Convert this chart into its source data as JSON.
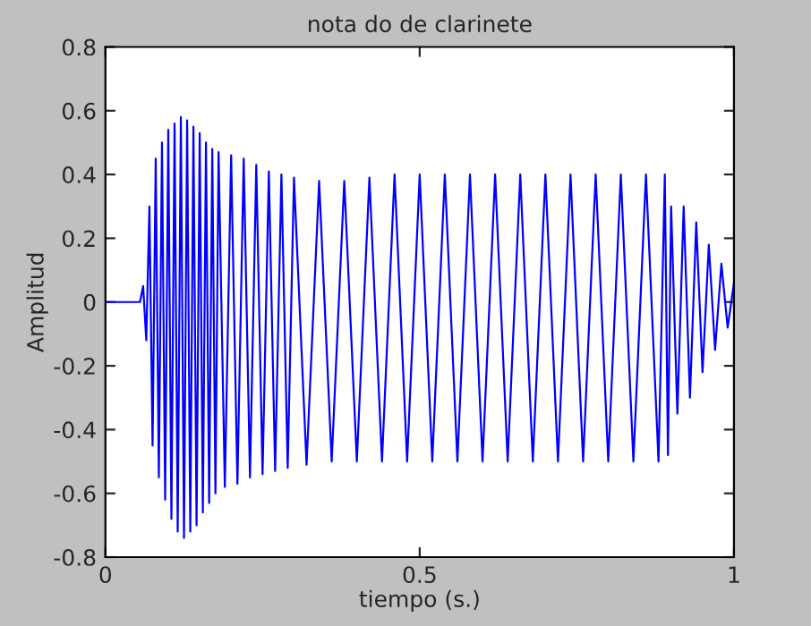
{
  "chart_data": {
    "type": "line",
    "title": "nota do de clarinete",
    "xlabel": "tiempo (s.)",
    "ylabel": "Amplitud",
    "xlim": [
      0,
      1
    ],
    "xticks": [
      0,
      0.5,
      1
    ],
    "ylim": [
      -0.8,
      0.8
    ],
    "yticks": [
      -0.8,
      -0.6,
      -0.4,
      -0.2,
      0,
      0.2,
      0.4,
      0.6,
      0.8
    ],
    "grid": false,
    "marker": "none",
    "line_style": "solid",
    "series": [
      {
        "color": "#0000ff",
        "x": [
          0,
          0.055,
          0.06,
          0.065,
          0.07,
          0.075,
          0.08,
          0.085,
          0.09,
          0.095,
          0.1,
          0.105,
          0.11,
          0.115,
          0.12,
          0.125,
          0.13,
          0.135,
          0.14,
          0.145,
          0.15,
          0.155,
          0.16,
          0.165,
          0.17,
          0.175,
          0.18,
          0.19,
          0.2,
          0.21,
          0.22,
          0.23,
          0.24,
          0.25,
          0.26,
          0.27,
          0.28,
          0.29,
          0.3,
          0.32,
          0.34,
          0.36,
          0.38,
          0.4,
          0.42,
          0.44,
          0.46,
          0.48,
          0.5,
          0.52,
          0.54,
          0.56,
          0.58,
          0.6,
          0.62,
          0.64,
          0.66,
          0.68,
          0.7,
          0.72,
          0.74,
          0.76,
          0.78,
          0.8,
          0.82,
          0.84,
          0.86,
          0.88,
          0.89,
          0.895,
          0.9,
          0.91,
          0.92,
          0.93,
          0.94,
          0.95,
          0.96,
          0.97,
          0.98,
          0.99,
          1.0
        ],
        "values": [
          0,
          0,
          0.05,
          -0.12,
          0.3,
          -0.45,
          0.45,
          -0.55,
          0.5,
          -0.62,
          0.54,
          -0.68,
          0.56,
          -0.72,
          0.58,
          -0.74,
          0.57,
          -0.72,
          0.55,
          -0.7,
          0.53,
          -0.66,
          0.5,
          -0.63,
          0.48,
          -0.6,
          0.47,
          -0.58,
          0.46,
          -0.57,
          0.45,
          -0.55,
          0.43,
          -0.54,
          0.41,
          -0.53,
          0.4,
          -0.52,
          0.39,
          -0.51,
          0.38,
          -0.5,
          0.38,
          -0.5,
          0.39,
          -0.5,
          0.4,
          -0.5,
          0.4,
          -0.5,
          0.4,
          -0.5,
          0.4,
          -0.5,
          0.4,
          -0.5,
          0.4,
          -0.5,
          0.4,
          -0.5,
          0.4,
          -0.5,
          0.4,
          -0.5,
          0.4,
          -0.5,
          0.4,
          -0.5,
          0.4,
          -0.48,
          0.3,
          -0.35,
          0.3,
          -0.3,
          0.25,
          -0.22,
          0.18,
          -0.15,
          0.12,
          -0.08,
          0.06
        ]
      }
    ]
  }
}
